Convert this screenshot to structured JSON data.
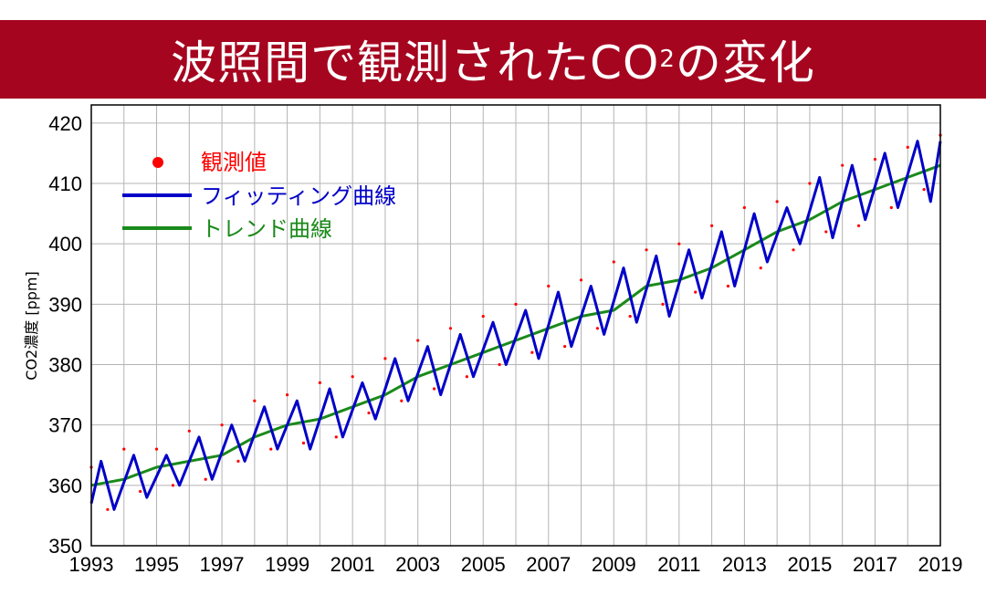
{
  "header": {
    "title_main": "波照間で観測されたCO",
    "title_sub": "2",
    "title_end": "の変化"
  },
  "chart_data": {
    "type": "line",
    "title": "波照間で観測されたCO2の変化",
    "ylabel": "CO2濃度 [ppm]",
    "xlabel": "",
    "xlim": [
      1993,
      2019
    ],
    "ylim": [
      350,
      423
    ],
    "x_ticks": [
      1993,
      1995,
      1997,
      1999,
      2001,
      2003,
      2005,
      2007,
      2009,
      2011,
      2013,
      2015,
      2017,
      2019
    ],
    "y_ticks": [
      350,
      360,
      370,
      380,
      390,
      400,
      410,
      420
    ],
    "grid": true,
    "legend_position": "top-left",
    "series": [
      {
        "name": "観測値",
        "type": "scatter",
        "color": "#ff0000",
        "x": [
          1993.0,
          1993.5,
          1994.0,
          1994.5,
          1995.0,
          1995.5,
          1996.0,
          1996.5,
          1997.0,
          1997.5,
          1998.0,
          1998.5,
          1999.0,
          1999.5,
          2000.0,
          2000.5,
          2001.0,
          2001.5,
          2002.0,
          2002.5,
          2003.0,
          2003.5,
          2004.0,
          2004.5,
          2005.0,
          2005.5,
          2006.0,
          2006.5,
          2007.0,
          2007.5,
          2008.0,
          2008.5,
          2009.0,
          2009.5,
          2010.0,
          2010.5,
          2011.0,
          2011.5,
          2012.0,
          2012.5,
          2013.0,
          2013.5,
          2014.0,
          2014.5,
          2015.0,
          2015.5,
          2016.0,
          2016.5,
          2017.0,
          2017.5,
          2018.0,
          2018.5,
          2019.0
        ],
        "y": [
          363,
          356,
          366,
          359,
          366,
          360,
          369,
          361,
          370,
          364,
          374,
          366,
          375,
          367,
          377,
          368,
          378,
          372,
          381,
          374,
          384,
          376,
          386,
          378,
          388,
          380,
          390,
          382,
          393,
          383,
          394,
          386,
          397,
          388,
          399,
          390,
          400,
          392,
          403,
          393,
          406,
          396,
          407,
          399,
          410,
          402,
          413,
          403,
          414,
          406,
          416,
          409,
          418
        ]
      },
      {
        "name": "フィッティング曲線",
        "type": "line",
        "color": "#0000c8",
        "x": [
          1993.0,
          1993.3,
          1993.7,
          1994.3,
          1994.7,
          1995.3,
          1995.7,
          1996.3,
          1996.7,
          1997.3,
          1997.7,
          1998.3,
          1998.7,
          1999.3,
          1999.7,
          2000.3,
          2000.7,
          2001.3,
          2001.7,
          2002.3,
          2002.7,
          2003.3,
          2003.7,
          2004.3,
          2004.7,
          2005.3,
          2005.7,
          2006.3,
          2006.7,
          2007.3,
          2007.7,
          2008.3,
          2008.7,
          2009.3,
          2009.7,
          2010.3,
          2010.7,
          2011.3,
          2011.7,
          2012.3,
          2012.7,
          2013.3,
          2013.7,
          2014.3,
          2014.7,
          2015.3,
          2015.7,
          2016.3,
          2016.7,
          2017.3,
          2017.7,
          2018.3,
          2018.7,
          2019.0
        ],
        "y": [
          357,
          364,
          356,
          365,
          358,
          365,
          360,
          368,
          361,
          370,
          364,
          373,
          366,
          374,
          366,
          376,
          368,
          377,
          371,
          381,
          374,
          383,
          375,
          385,
          378,
          387,
          380,
          389,
          381,
          392,
          383,
          393,
          385,
          396,
          387,
          398,
          388,
          399,
          391,
          402,
          393,
          405,
          397,
          406,
          400,
          411,
          401,
          413,
          404,
          415,
          406,
          417,
          407,
          417
        ]
      },
      {
        "name": "トレンド曲線",
        "type": "line",
        "color": "#1a8a1a",
        "x": [
          1993.0,
          1994.0,
          1995.0,
          1996.0,
          1997.0,
          1998.0,
          1999.0,
          2000.0,
          2001.0,
          2002.0,
          2003.0,
          2004.0,
          2005.0,
          2006.0,
          2007.0,
          2008.0,
          2009.0,
          2010.0,
          2011.0,
          2012.0,
          2013.0,
          2014.0,
          2015.0,
          2016.0,
          2017.0,
          2018.0,
          2019.0
        ],
        "y": [
          360,
          361,
          363,
          364,
          365,
          368,
          370,
          371,
          373,
          375,
          378,
          380,
          382,
          384,
          386,
          388,
          389,
          393,
          394,
          396,
          399,
          402,
          404,
          407,
          409,
          411,
          413
        ]
      }
    ]
  }
}
